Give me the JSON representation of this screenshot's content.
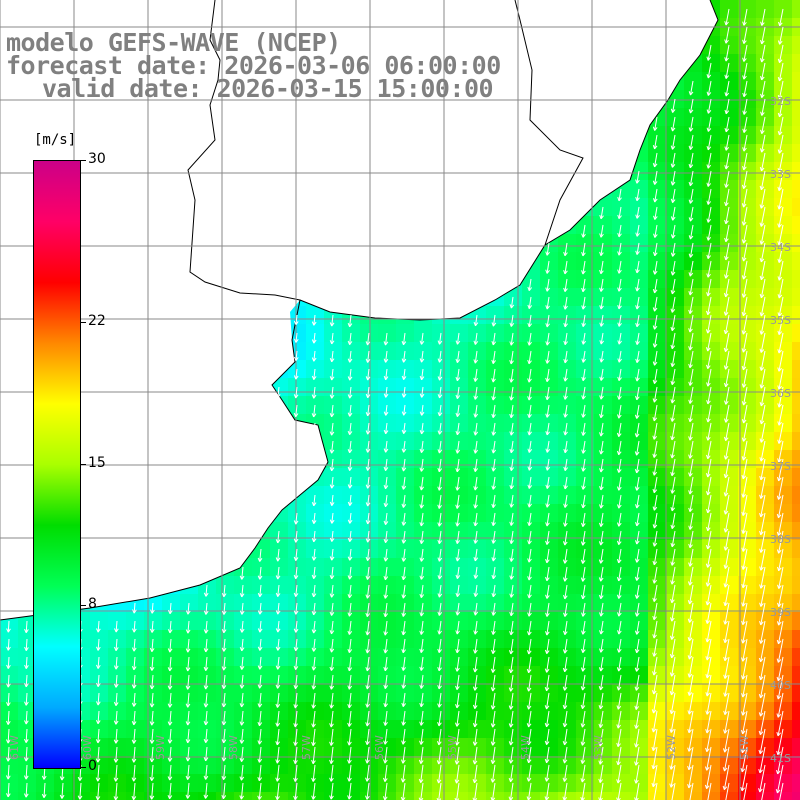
{
  "title": {
    "line1": "modelo GEFS-WAVE (NCEP)",
    "line2": "forecast date: 2026-03-06 06:00:00",
    "line3": "valid date: 2026-03-15 15:00:00"
  },
  "colorbar": {
    "units": "[m/s]",
    "min": 0,
    "max": 30,
    "ticks": [
      "30",
      "22",
      "15",
      "8",
      "0"
    ],
    "tick_values": [
      30,
      22,
      15,
      8,
      0
    ],
    "colors": [
      "#0000ff",
      "#00aaff",
      "#00ffff",
      "#00ff55",
      "#00dd00",
      "#aaff00",
      "#ffff00",
      "#ff8800",
      "#ff0000",
      "#ff0066",
      "#cc0088"
    ]
  },
  "map": {
    "lat_labels": [
      "32S",
      "33S",
      "34S",
      "35S",
      "36S",
      "37S",
      "38S",
      "39S",
      "40S",
      "41S"
    ],
    "lon_labels": [
      "61W",
      "60W",
      "59W",
      "58W",
      "57W",
      "56W",
      "55W",
      "54W",
      "53W",
      "52W",
      "51W"
    ],
    "lat_values": [
      32,
      33,
      34,
      35,
      36,
      37,
      38,
      39,
      40,
      41
    ],
    "lon_values": [
      61,
      60,
      59,
      58,
      57,
      56,
      55,
      54,
      53,
      52,
      51
    ]
  }
}
